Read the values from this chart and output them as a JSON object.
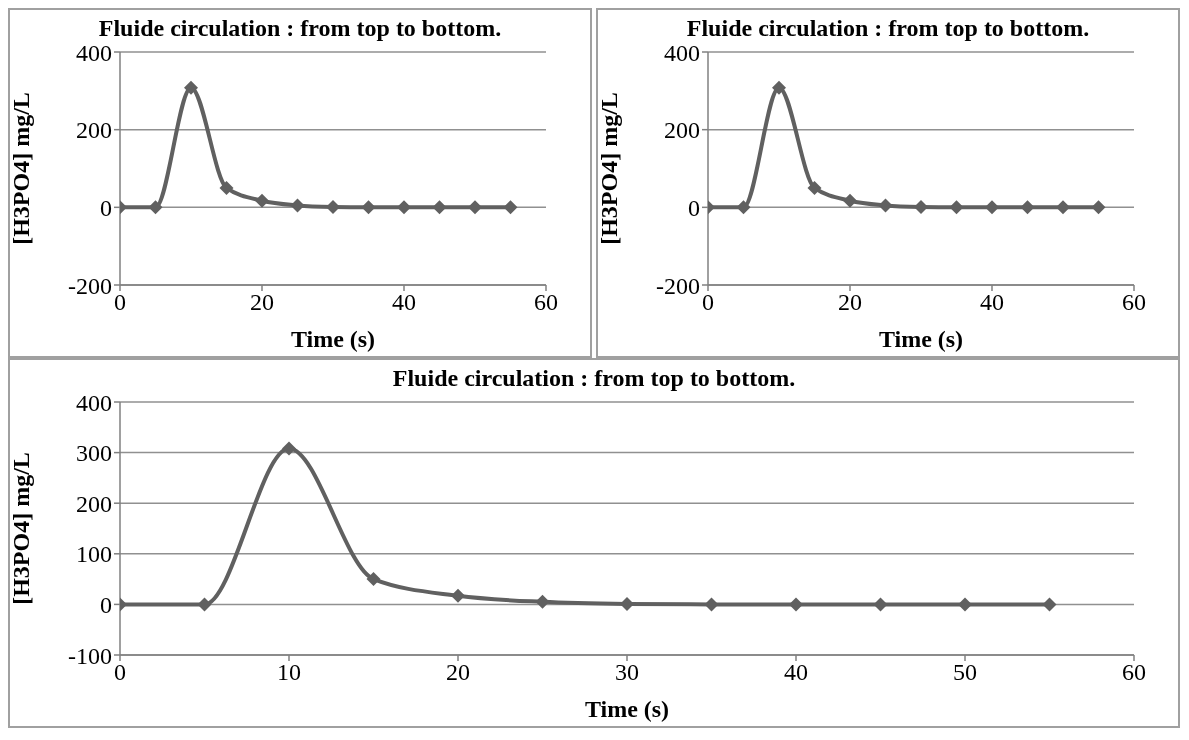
{
  "chart_data": [
    {
      "type": "line",
      "title": "Fluide circulation : from top to bottom.",
      "xlabel": "Time (s)",
      "ylabel": "[H3PO4] mg/L",
      "x": [
        0,
        5,
        10,
        15,
        20,
        25,
        30,
        35,
        40,
        45,
        50,
        55
      ],
      "series": [
        {
          "color": "#606060",
          "values": [
            0,
            0,
            308,
            50,
            17,
            5,
            1,
            0,
            0,
            0,
            0,
            0
          ]
        }
      ],
      "xlim": [
        0,
        60
      ],
      "xticks": [
        0,
        20,
        40,
        60
      ],
      "ylim": [
        -200,
        400
      ],
      "yticks": [
        -200,
        0,
        200,
        400
      ],
      "grid": "y",
      "legend": false,
      "marker": "diamond",
      "line_style": "solid"
    },
    {
      "type": "line",
      "title": "Fluide circulation : from top to bottom.",
      "xlabel": "Time (s)",
      "ylabel": "[H3PO4] mg/L",
      "x": [
        0,
        5,
        10,
        15,
        20,
        25,
        30,
        35,
        40,
        45,
        50,
        55
      ],
      "series": [
        {
          "color": "#606060",
          "values": [
            0,
            0,
            308,
            50,
            17,
            5,
            1,
            0,
            0,
            0,
            0,
            0
          ]
        }
      ],
      "xlim": [
        0,
        60
      ],
      "xticks": [
        0,
        20,
        40,
        60
      ],
      "ylim": [
        -200,
        400
      ],
      "yticks": [
        -200,
        0,
        200,
        400
      ],
      "grid": "y",
      "legend": false,
      "marker": "diamond",
      "line_style": "solid"
    },
    {
      "type": "line",
      "title": "Fluide circulation : from top to bottom.",
      "xlabel": "Time (s)",
      "ylabel": "[H3PO4] mg/L",
      "x": [
        0,
        5,
        10,
        15,
        20,
        25,
        30,
        35,
        40,
        45,
        50,
        55
      ],
      "series": [
        {
          "color": "#606060",
          "values": [
            0,
            0,
            308,
            50,
            17,
            5,
            1,
            0,
            0,
            0,
            0,
            0
          ]
        }
      ],
      "xlim": [
        0,
        60
      ],
      "xticks": [
        0,
        10,
        20,
        30,
        40,
        50,
        60
      ],
      "ylim": [
        -100,
        400
      ],
      "yticks": [
        -100,
        0,
        100,
        200,
        300,
        400
      ],
      "grid": "y",
      "legend": false,
      "marker": "diamond",
      "line_style": "solid"
    }
  ]
}
